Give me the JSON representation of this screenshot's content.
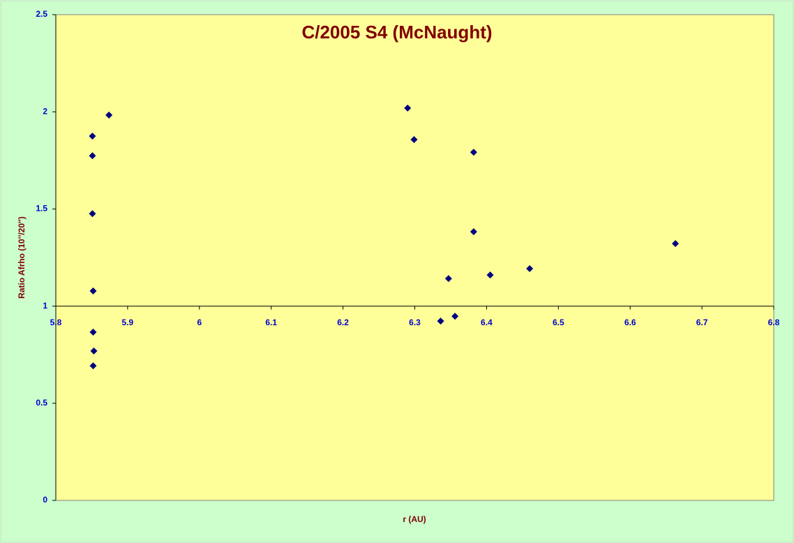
{
  "chart_data": {
    "type": "scatter",
    "title": "C/2005 S4 (McNaught)",
    "x_label": "r (AU)",
    "y_label": "Ratio Afrho (10''/20'')",
    "series": [
      {
        "color": "#000080",
        "x": [
          5.851,
          5.851,
          5.851,
          5.852,
          5.852,
          5.853,
          5.852,
          5.874,
          6.29,
          6.299,
          6.336,
          6.347,
          6.356,
          6.382,
          6.382,
          6.405,
          6.46,
          6.663
        ],
        "values": [
          1.875,
          1.774,
          1.476,
          1.078,
          0.866,
          0.769,
          0.693,
          1.983,
          2.019,
          1.857,
          0.923,
          1.142,
          0.948,
          1.792,
          1.383,
          1.16,
          1.193,
          1.322
        ]
      }
    ],
    "xlim": [
      5.8,
      6.8
    ],
    "xticks": [
      5.8,
      5.9,
      6,
      6.1,
      6.2,
      6.3,
      6.4,
      6.5,
      6.6,
      6.7,
      6.8
    ],
    "ylim": [
      0,
      2.5
    ],
    "yticks": [
      0,
      0.5,
      1,
      1.5,
      2,
      2.5
    ],
    "x_axis_crosses_at": 1,
    "grid": false
  }
}
